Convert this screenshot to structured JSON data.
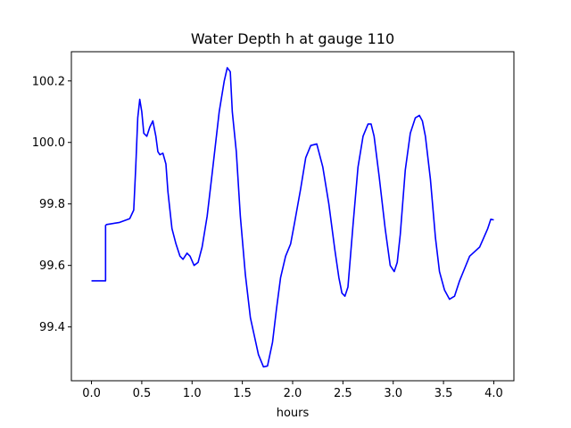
{
  "chart_data": {
    "type": "line",
    "title": "Water Depth h at gauge 110",
    "xlabel": "hours",
    "ylabel": "",
    "xlim": [
      -0.2,
      4.2
    ],
    "ylim": [
      99.225,
      100.295
    ],
    "xticks": [
      "0.0",
      "0.5",
      "1.0",
      "1.5",
      "2.0",
      "2.5",
      "3.0",
      "3.5",
      "4.0"
    ],
    "yticks": [
      "99.4",
      "99.6",
      "99.8",
      "100.0",
      "100.2"
    ],
    "grid": false,
    "series": [
      {
        "color": "#0000ff",
        "x": [
          0.0,
          0.14,
          0.14,
          0.15,
          0.28,
          0.38,
          0.42,
          0.44,
          0.46,
          0.48,
          0.5,
          0.52,
          0.55,
          0.58,
          0.61,
          0.64,
          0.66,
          0.68,
          0.71,
          0.74,
          0.76,
          0.8,
          0.84,
          0.88,
          0.91,
          0.95,
          0.98,
          1.02,
          1.06,
          1.1,
          1.15,
          1.2,
          1.27,
          1.32,
          1.35,
          1.38,
          1.4,
          1.44,
          1.48,
          1.53,
          1.58,
          1.62,
          1.66,
          1.71,
          1.75,
          1.8,
          1.84,
          1.88,
          1.93,
          1.98,
          2.02,
          2.08,
          2.13,
          2.18,
          2.24,
          2.3,
          2.36,
          2.42,
          2.46,
          2.49,
          2.52,
          2.55,
          2.6,
          2.65,
          2.7,
          2.75,
          2.78,
          2.81,
          2.86,
          2.92,
          2.97,
          3.01,
          3.04,
          3.07,
          3.12,
          3.17,
          3.22,
          3.26,
          3.29,
          3.32,
          3.37,
          3.42,
          3.46,
          3.51,
          3.56,
          3.61,
          3.66,
          3.71,
          3.76,
          3.81,
          3.86,
          3.9,
          3.94,
          3.97,
          4.0
        ],
        "y": [
          99.55,
          99.55,
          99.73,
          99.733,
          99.74,
          99.752,
          99.78,
          99.92,
          100.08,
          100.14,
          100.1,
          100.03,
          100.02,
          100.05,
          100.07,
          100.02,
          99.97,
          99.96,
          99.965,
          99.93,
          99.84,
          99.72,
          99.67,
          99.63,
          99.62,
          99.64,
          99.63,
          99.6,
          99.61,
          99.66,
          99.76,
          99.9,
          100.1,
          100.2,
          100.243,
          100.23,
          100.1,
          99.97,
          99.76,
          99.57,
          99.43,
          99.37,
          99.31,
          99.27,
          99.273,
          99.35,
          99.46,
          99.56,
          99.63,
          99.67,
          99.74,
          99.85,
          99.95,
          99.99,
          99.995,
          99.92,
          99.8,
          99.65,
          99.56,
          99.51,
          99.5,
          99.53,
          99.73,
          99.92,
          100.02,
          100.06,
          100.06,
          100.02,
          99.89,
          99.72,
          99.6,
          99.58,
          99.61,
          99.7,
          99.91,
          100.03,
          100.08,
          100.088,
          100.07,
          100.02,
          99.88,
          99.69,
          99.58,
          99.52,
          99.49,
          99.5,
          99.55,
          99.59,
          99.63,
          99.645,
          99.66,
          99.69,
          99.72,
          99.75,
          99.748
        ]
      }
    ]
  }
}
